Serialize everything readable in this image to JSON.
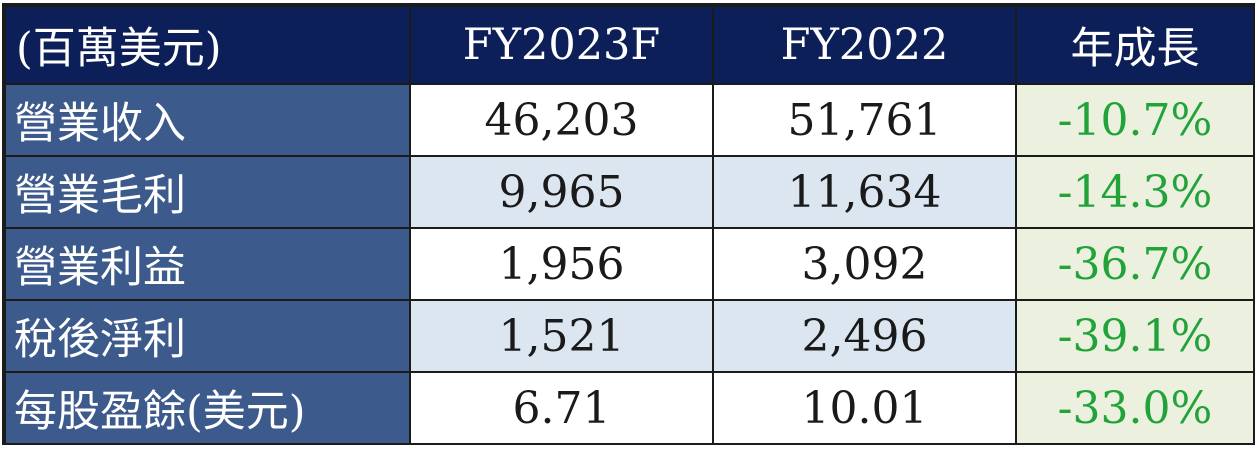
{
  "header": {
    "unit_label": "(百萬美元)",
    "col_fy2023f": "FY2023F",
    "col_fy2022": "FY2022",
    "col_growth": "年成長"
  },
  "rows": [
    {
      "label": "營業收入",
      "fy2023f": "46,203",
      "fy2022": "51,761",
      "growth": "-10.7%"
    },
    {
      "label": "營業毛利",
      "fy2023f": "9,965",
      "fy2022": "11,634",
      "growth": "-14.3%"
    },
    {
      "label": "營業利益",
      "fy2023f": "1,956",
      "fy2022": "3,092",
      "growth": "-36.7%"
    },
    {
      "label": "稅後淨利",
      "fy2023f": "1,521",
      "fy2022": "2,496",
      "growth": "-39.1%"
    },
    {
      "label": "每股盈餘(美元)",
      "fy2023f": "6.71",
      "fy2022": "10.01",
      "growth": "-33.0%"
    }
  ],
  "colors": {
    "header_bg": "#0d1f58",
    "label_bg": "#3d5a8c",
    "stripe_bg": "#dce6f1",
    "growth_bg": "#ebf1de",
    "growth_text": "#21a33a"
  }
}
